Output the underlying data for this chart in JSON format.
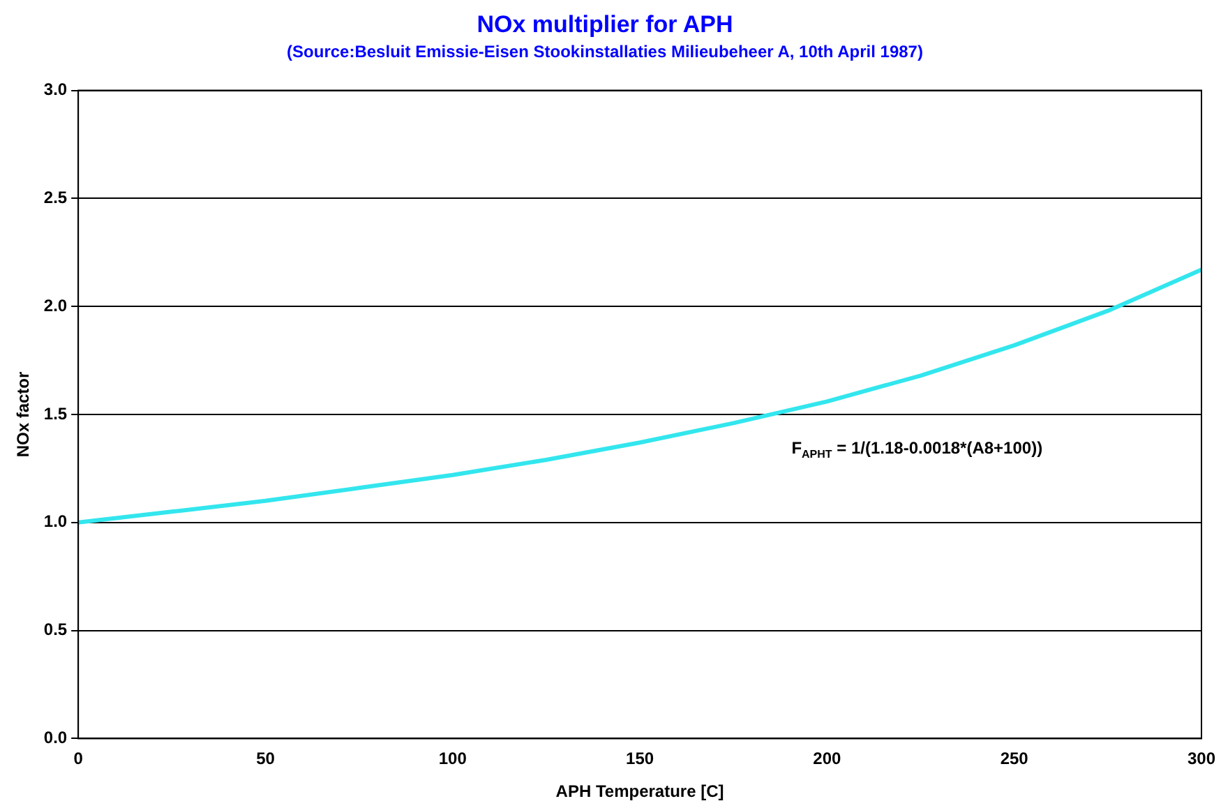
{
  "chart_data": {
    "type": "line",
    "title": "NOx multiplier for APH",
    "subtitle": "(Source:Besluit Emissie-Eisen Stookinstallaties Milieubeheer A, 10th April 1987)",
    "xlabel": "APH Temperature [C]",
    "ylabel": "NOx factor",
    "x": [
      0,
      25,
      50,
      75,
      100,
      125,
      150,
      175,
      200,
      225,
      250,
      275,
      300
    ],
    "series": [
      {
        "color": "#33e6ee",
        "values": [
          1.0,
          1.05,
          1.1,
          1.16,
          1.22,
          1.29,
          1.37,
          1.46,
          1.56,
          1.68,
          1.82,
          1.98,
          2.17
        ]
      }
    ],
    "xlim": [
      0,
      300
    ],
    "xticks": [
      0,
      50,
      100,
      150,
      200,
      250,
      300
    ],
    "ylim": [
      0,
      3
    ],
    "yticks": [
      {
        "value": 0,
        "label": "0.0"
      },
      {
        "value": 0.5,
        "label": "0.5"
      },
      {
        "value": 1,
        "label": "1.0"
      },
      {
        "value": 1.5,
        "label": "1.5"
      },
      {
        "value": 2,
        "label": "2.0"
      },
      {
        "value": 2.5,
        "label": "2.5"
      },
      {
        "value": 3,
        "label": "3.0"
      }
    ],
    "grid": "y",
    "legend": false,
    "marker": "none",
    "line_style": "solid",
    "annotations": [
      "F$_{APHT}$ = 1/(1.18-0.0018*(A8+100))"
    ]
  }
}
